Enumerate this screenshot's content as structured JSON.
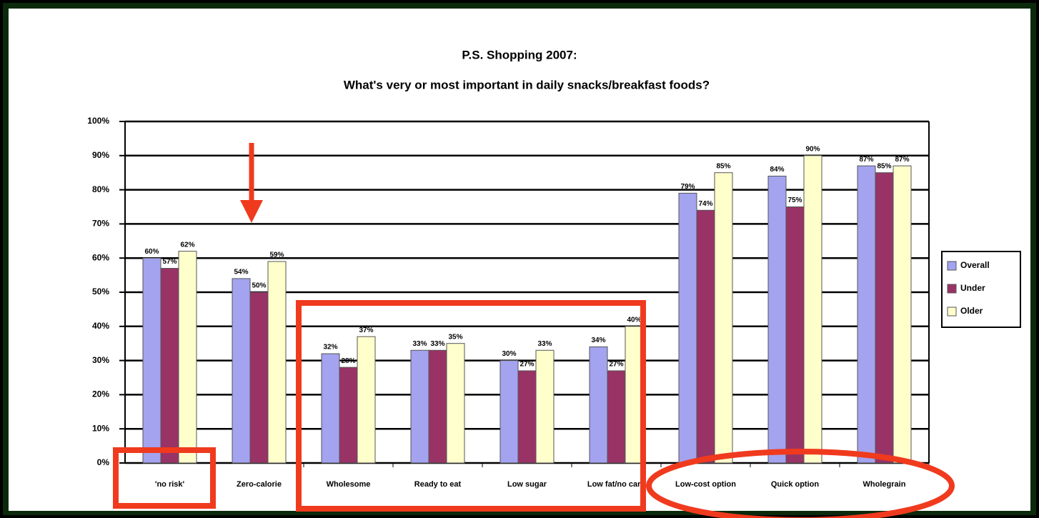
{
  "chart_data": {
    "type": "bar",
    "title": "P.S. Shopping 2007:",
    "subtitle": "What's very or most important in daily snacks/breakfast foods?",
    "categories": [
      "'no risk'",
      "Zero-calorie",
      "Wholesome",
      "Ready to eat",
      "Low sugar",
      "Low fat/no carb",
      "Low-cost option",
      "Quick option",
      "Wholegrain"
    ],
    "series": [
      {
        "name": "Overall",
        "color": "#a3a3f0",
        "values": [
          60,
          54,
          32,
          33,
          30,
          34,
          79,
          84,
          87
        ],
        "value_labels": [
          "60%",
          "54%",
          "32%",
          "33%",
          "30%",
          "34%",
          "79%",
          "84%",
          "87%"
        ]
      },
      {
        "name": "Under",
        "color": "#993366",
        "values": [
          57,
          50,
          28,
          33,
          27,
          27,
          74,
          75,
          85
        ],
        "value_labels": [
          "57%",
          "50%",
          "28%",
          "33%",
          "27%",
          "27%",
          "74%",
          "75%",
          "85%"
        ]
      },
      {
        "name": "Older",
        "color": "#ffffcc",
        "values": [
          62,
          59,
          37,
          35,
          33,
          40,
          85,
          90,
          87
        ],
        "value_labels": [
          "62%",
          "59%",
          "37%",
          "35%",
          "33%",
          "40%",
          "85%",
          "90%",
          "87%"
        ]
      }
    ],
    "ylim": [
      0,
      100
    ],
    "yticks": [
      {
        "value": 0,
        "label": "0%"
      },
      {
        "value": 10,
        "label": "10%"
      },
      {
        "value": 20,
        "label": "20%"
      },
      {
        "value": 30,
        "label": "30%"
      },
      {
        "value": 40,
        "label": "40%"
      },
      {
        "value": 50,
        "label": "50%"
      },
      {
        "value": 60,
        "label": "60%"
      },
      {
        "value": 70,
        "label": "70%"
      },
      {
        "value": 80,
        "label": "80%"
      },
      {
        "value": 90,
        "label": "90%"
      },
      {
        "value": 100,
        "label": "100%"
      }
    ],
    "grid": true,
    "legend": "right"
  }
}
